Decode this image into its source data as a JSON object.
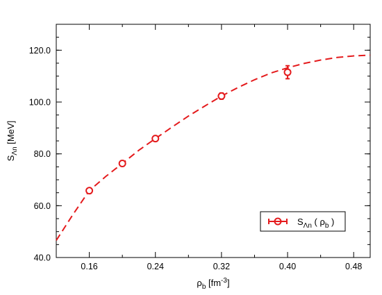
{
  "chart_data": {
    "type": "scatter",
    "xlabel": {
      "base": "ρ",
      "sub": "b",
      "unit_prefix": " [fm",
      "unit_sup": "-3",
      "unit_suffix": "]"
    },
    "ylabel": {
      "base": "S",
      "sub": "Λn",
      "unit": " [MeV]"
    },
    "xlim": [
      0.12,
      0.5
    ],
    "ylim": [
      40.0,
      130.0
    ],
    "xticks": [
      0.16,
      0.24,
      0.32,
      0.4,
      0.48
    ],
    "xtick_labels": [
      "0.16",
      "0.24",
      "0.32",
      "0.40",
      "0.48"
    ],
    "yticks": [
      40.0,
      60.0,
      80.0,
      100.0,
      120.0
    ],
    "ytick_labels": [
      "40.0",
      "60.0",
      "80.0",
      "100.0",
      "120.0"
    ],
    "grid": false,
    "legend_position": "bottom-right",
    "series": [
      {
        "name": {
          "base": "S",
          "sub": "Λn",
          "paren_open": " ( ρ",
          "paren_sub": "b",
          "paren_close": " )"
        },
        "color": "#e41a1c",
        "points": [
          {
            "x": 0.16,
            "y": 65.8,
            "err": 0.8
          },
          {
            "x": 0.2,
            "y": 76.3,
            "err": 1.0
          },
          {
            "x": 0.24,
            "y": 85.9,
            "err": 1.0
          },
          {
            "x": 0.32,
            "y": 102.3,
            "err": 1.2
          },
          {
            "x": 0.4,
            "y": 111.5,
            "err": 2.5
          }
        ]
      }
    ],
    "fit_curve": {
      "style": "dashed",
      "color": "#e41a1c",
      "x": [
        0.12,
        0.14,
        0.16,
        0.18,
        0.2,
        0.22,
        0.24,
        0.26,
        0.28,
        0.3,
        0.32,
        0.34,
        0.36,
        0.38,
        0.4,
        0.42,
        0.44,
        0.46,
        0.48,
        0.5
      ],
      "y": [
        46.6,
        56.5,
        65.8,
        71.3,
        76.3,
        81.4,
        85.9,
        90.3,
        94.6,
        98.5,
        102.3,
        105.6,
        108.6,
        111.2,
        113.2,
        114.9,
        116.2,
        117.2,
        117.8,
        118.1
      ]
    }
  }
}
